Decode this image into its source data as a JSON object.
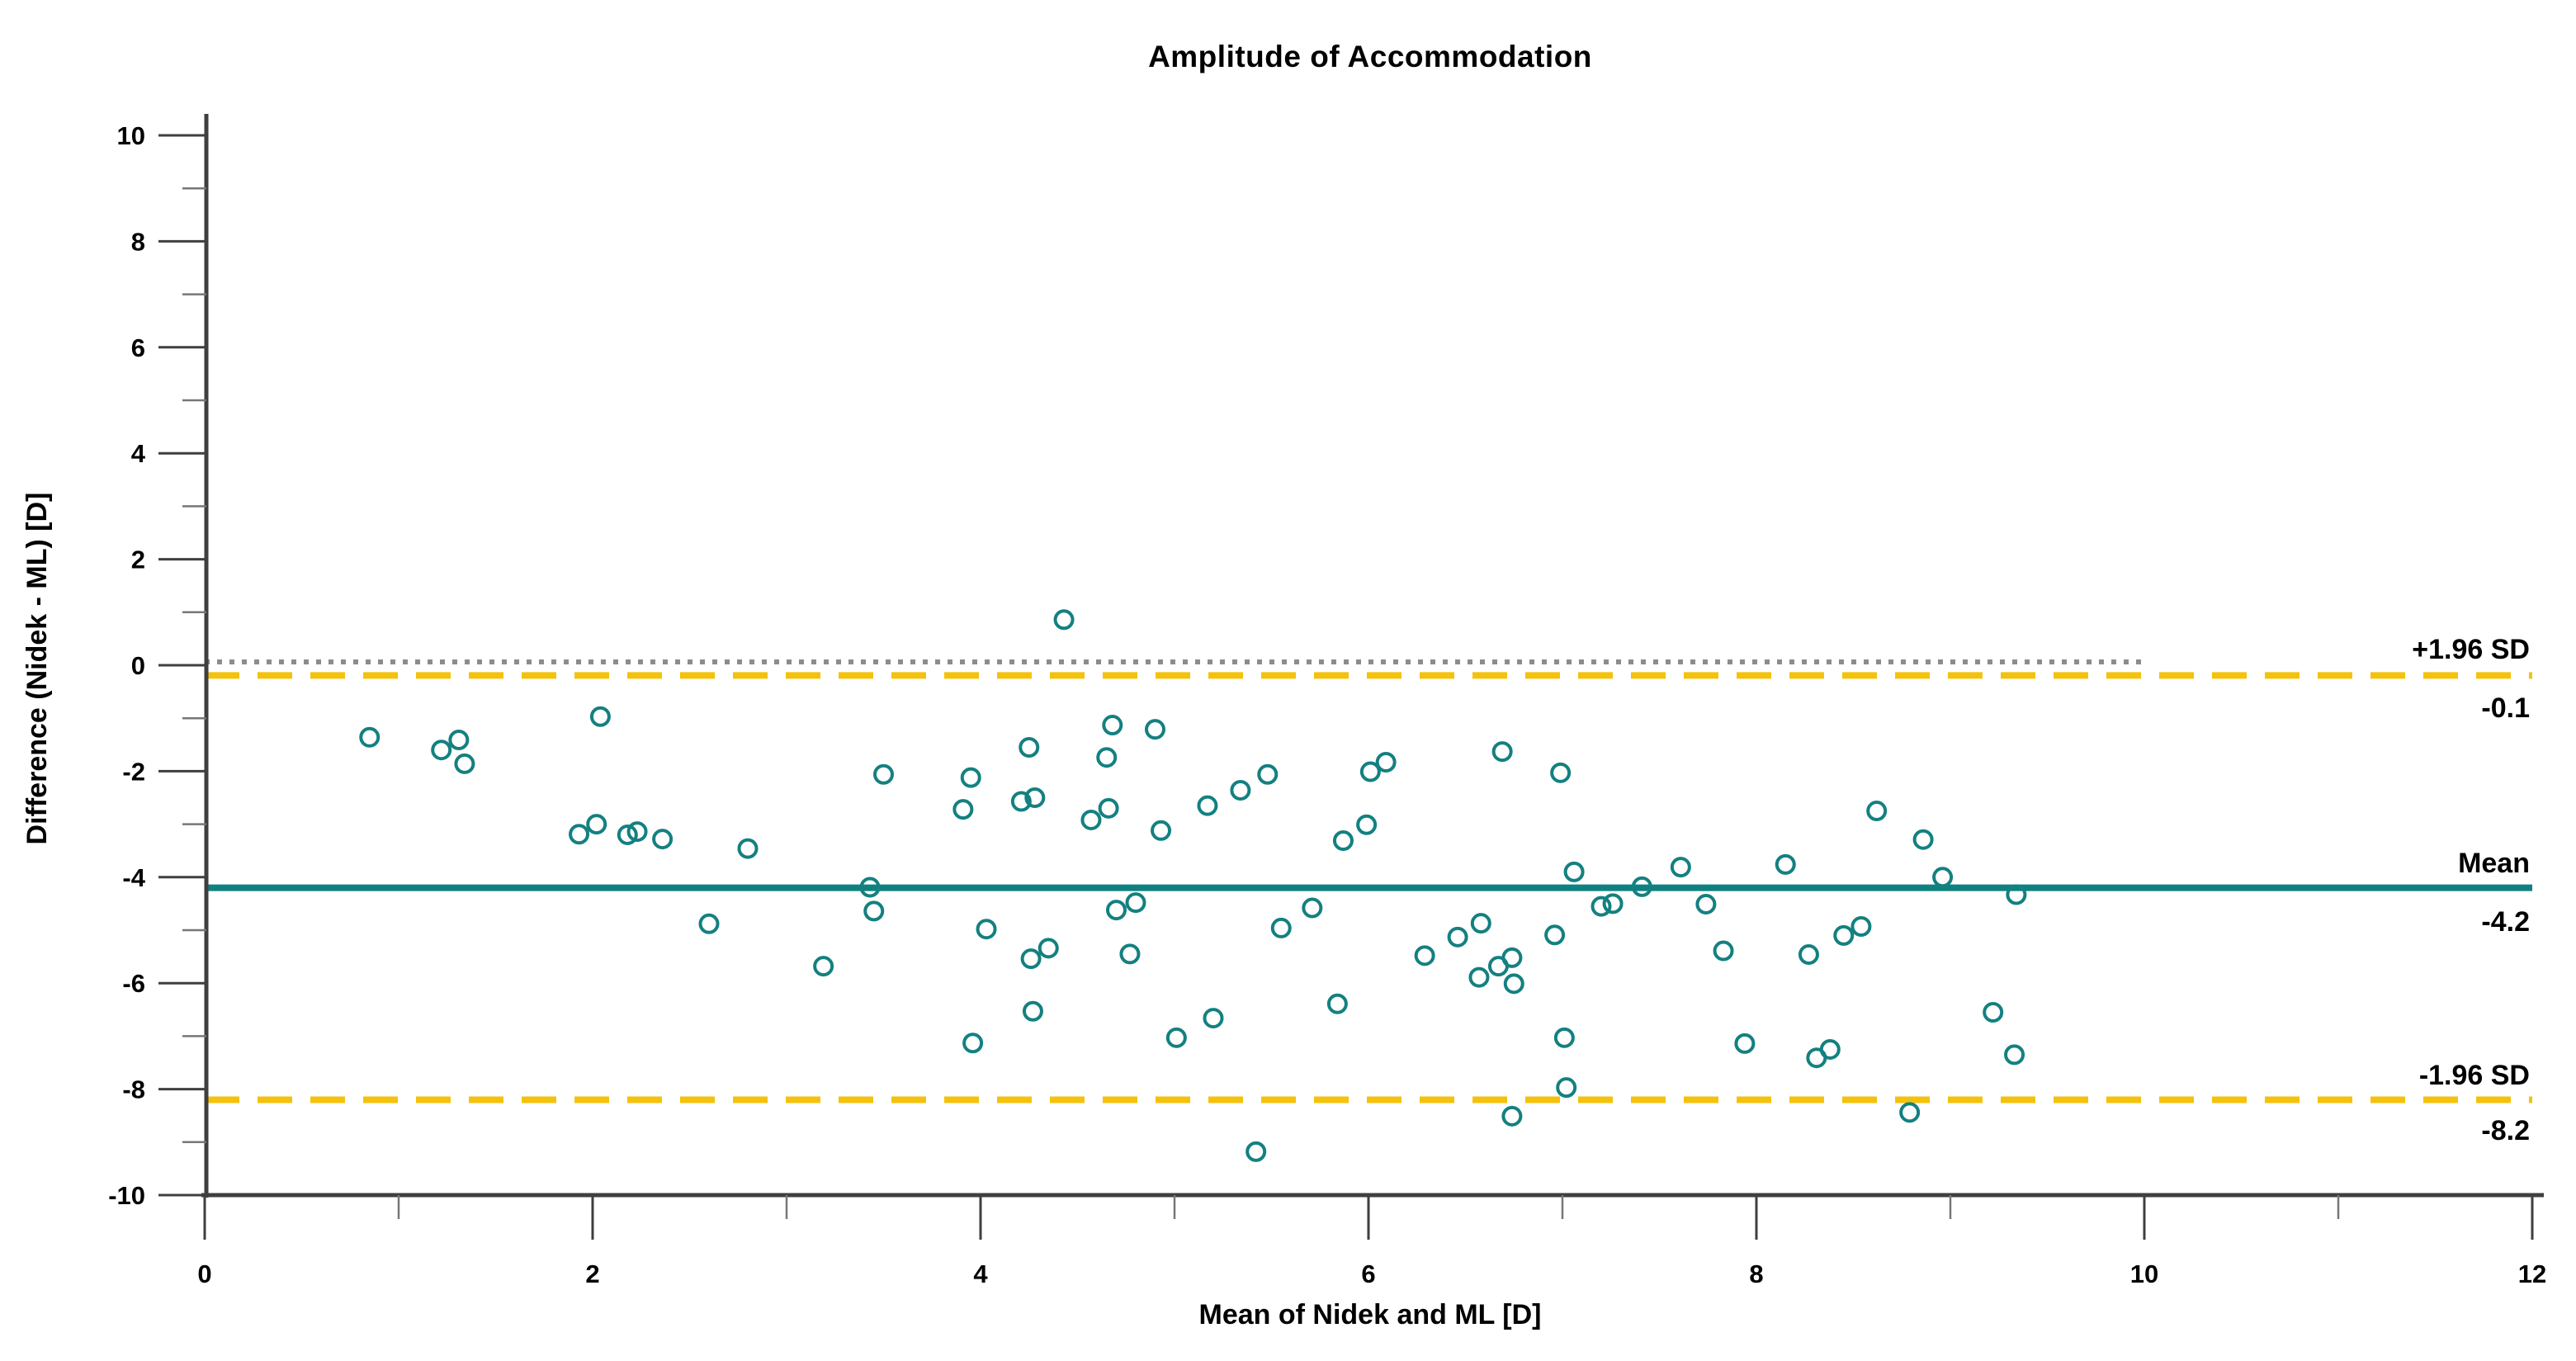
{
  "title": "Amplitude of Accommodation",
  "chart_data": {
    "type": "scatter",
    "title": "Amplitude of Accommodation",
    "xlabel": "Mean of Nidek and ML [D]",
    "ylabel": "Difference (Nidek - ML) [D]",
    "xlim": [
      0,
      12
    ],
    "ylim": [
      -10,
      10
    ],
    "grid": false,
    "x_ticks": [
      0,
      2,
      4,
      6,
      8,
      10,
      12
    ],
    "x_tick_labels": [
      "0",
      "2",
      "4",
      "6",
      "8",
      "10",
      "12"
    ],
    "x_minor_ticks": [
      1,
      3,
      5,
      7,
      9,
      11
    ],
    "y_ticks": [
      10,
      8,
      6,
      4,
      2,
      0,
      -2,
      -4,
      -6,
      -8,
      -10
    ],
    "y_tick_labels": [
      "10",
      "8",
      "6",
      "4",
      "2",
      "0",
      "-2",
      "-4",
      "-6",
      "-8",
      "-10"
    ],
    "y_minor_ticks": [
      9,
      7,
      5,
      3,
      1,
      -1,
      -3,
      -5,
      -7,
      -9
    ],
    "marker": {
      "shape": "open-circle",
      "color": "#148080"
    },
    "reference_lines": [
      {
        "id": "zero-line",
        "value": 0,
        "style": "dotted",
        "color": "#8c8c8c",
        "x_span": [
          0,
          10
        ],
        "label": "",
        "value_label": ""
      },
      {
        "id": "upper-loa-line",
        "value": -0.1,
        "style": "dashed",
        "color": "#f4c20d",
        "x_span": [
          0,
          12
        ],
        "label": "+1.96 SD",
        "value_label": "-0.1"
      },
      {
        "id": "mean-line",
        "value": -4.2,
        "style": "solid",
        "color": "#0e8180",
        "x_span": [
          0,
          12
        ],
        "label": "Mean",
        "value_label": "-4.2"
      },
      {
        "id": "lower-loa-line",
        "value": -8.2,
        "style": "dashed",
        "color": "#f4c20d",
        "x_span": [
          0,
          12
        ],
        "label": "-1.96 SD",
        "value_label": "-8.2"
      }
    ],
    "points": [
      [
        0.85,
        -1.36
      ],
      [
        1.22,
        -1.6
      ],
      [
        1.31,
        -1.41
      ],
      [
        1.34,
        -1.86
      ],
      [
        2.04,
        -0.97
      ],
      [
        1.93,
        -3.19
      ],
      [
        2.02,
        -3.0
      ],
      [
        2.18,
        -3.2
      ],
      [
        2.23,
        -3.14
      ],
      [
        2.36,
        -3.28
      ],
      [
        2.8,
        -3.46
      ],
      [
        2.6,
        -4.88
      ],
      [
        3.19,
        -5.68
      ],
      [
        3.43,
        -4.19
      ],
      [
        3.45,
        -4.64
      ],
      [
        3.5,
        -2.06
      ],
      [
        4.03,
        -4.98
      ],
      [
        3.96,
        -7.13
      ],
      [
        3.95,
        -2.12
      ],
      [
        3.91,
        -2.72
      ],
      [
        4.26,
        -5.54
      ],
      [
        4.35,
        -5.34
      ],
      [
        4.27,
        -6.53
      ],
      [
        4.25,
        -1.55
      ],
      [
        4.21,
        -2.57
      ],
      [
        4.28,
        -2.5
      ],
      [
        4.43,
        0.86
      ],
      [
        4.57,
        -2.92
      ],
      [
        4.66,
        -2.7
      ],
      [
        4.68,
        -1.13
      ],
      [
        4.65,
        -1.74
      ],
      [
        4.9,
        -1.21
      ],
      [
        4.93,
        -3.12
      ],
      [
        4.7,
        -4.62
      ],
      [
        4.8,
        -4.48
      ],
      [
        4.77,
        -5.45
      ],
      [
        5.01,
        -7.03
      ],
      [
        5.2,
        -6.66
      ],
      [
        5.42,
        -9.18
      ],
      [
        5.55,
        -4.96
      ],
      [
        5.71,
        -4.58
      ],
      [
        5.84,
        -6.39
      ],
      [
        5.17,
        -2.65
      ],
      [
        5.34,
        -2.36
      ],
      [
        5.48,
        -2.06
      ],
      [
        5.87,
        -3.31
      ],
      [
        5.99,
        -3.01
      ],
      [
        6.01,
        -2.01
      ],
      [
        6.09,
        -1.83
      ],
      [
        6.69,
        -1.63
      ],
      [
        6.99,
        -2.03
      ],
      [
        6.29,
        -5.48
      ],
      [
        6.46,
        -5.13
      ],
      [
        6.58,
        -4.87
      ],
      [
        6.57,
        -5.89
      ],
      [
        6.67,
        -5.68
      ],
      [
        6.74,
        -5.52
      ],
      [
        6.75,
        -6.01
      ],
      [
        6.96,
        -5.09
      ],
      [
        7.01,
        -7.03
      ],
      [
        7.02,
        -7.97
      ],
      [
        6.74,
        -8.51
      ],
      [
        7.06,
        -3.9
      ],
      [
        7.41,
        -4.18
      ],
      [
        7.2,
        -4.55
      ],
      [
        7.26,
        -4.5
      ],
      [
        7.61,
        -3.81
      ],
      [
        7.74,
        -4.51
      ],
      [
        8.15,
        -3.76
      ],
      [
        7.83,
        -5.39
      ],
      [
        8.27,
        -5.46
      ],
      [
        8.45,
        -5.1
      ],
      [
        8.54,
        -4.93
      ],
      [
        7.94,
        -7.14
      ],
      [
        8.31,
        -7.41
      ],
      [
        8.38,
        -7.25
      ],
      [
        8.79,
        -8.44
      ],
      [
        8.62,
        -2.75
      ],
      [
        8.86,
        -3.29
      ],
      [
        8.96,
        -4.0
      ],
      [
        9.34,
        -4.33
      ],
      [
        9.22,
        -6.55
      ],
      [
        9.33,
        -7.35
      ]
    ]
  }
}
